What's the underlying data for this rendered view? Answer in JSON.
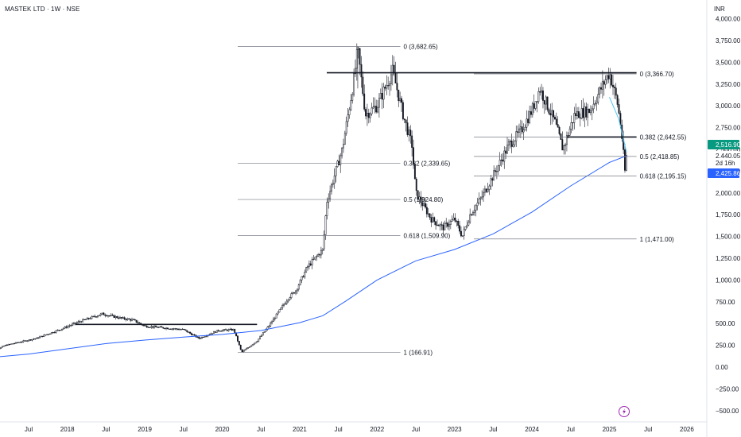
{
  "header": {
    "title": "MASTEK LTD · 1W · NSE",
    "currency": "INR"
  },
  "chart_data": {
    "type": "candlestick",
    "y_axis": {
      "min": -500,
      "max": 4000,
      "ticks": [
        "4,000.00",
        "3,750.00",
        "3,500.00",
        "3,250.00",
        "3,000.00",
        "2,750.00",
        "2,500.00",
        "2,250.00",
        "2,000.00",
        "1,750.00",
        "1,500.00",
        "1,250.00",
        "1,000.00",
        "750.00",
        "500.00",
        "250.00",
        "0.00",
        "−250.00",
        "−500.00"
      ],
      "tick_values": [
        4000,
        3750,
        3500,
        3250,
        3000,
        2750,
        2500,
        2250,
        2000,
        1750,
        1500,
        1250,
        1000,
        750,
        500,
        250,
        0,
        -250,
        -500
      ]
    },
    "x_axis": {
      "ticks": [
        {
          "label": "Jul",
          "t": 2017.5
        },
        {
          "label": "2018",
          "t": 2018.0
        },
        {
          "label": "Jul",
          "t": 2018.5
        },
        {
          "label": "2019",
          "t": 2019.0
        },
        {
          "label": "Jul",
          "t": 2019.5
        },
        {
          "label": "2020",
          "t": 2020.0
        },
        {
          "label": "Jul",
          "t": 2020.5
        },
        {
          "label": "2021",
          "t": 2021.0
        },
        {
          "label": "Jul",
          "t": 2021.5
        },
        {
          "label": "2022",
          "t": 2022.0
        },
        {
          "label": "Jul",
          "t": 2022.5
        },
        {
          "label": "2023",
          "t": 2023.0
        },
        {
          "label": "Jul",
          "t": 2023.5
        },
        {
          "label": "2024",
          "t": 2024.0
        },
        {
          "label": "Jul",
          "t": 2024.5
        },
        {
          "label": "2025",
          "t": 2025.0
        },
        {
          "label": "Jul",
          "t": 2025.5
        },
        {
          "label": "2026",
          "t": 2026.0
        }
      ]
    },
    "price_path": [
      [
        2016.95,
        140
      ],
      [
        2017.2,
        250
      ],
      [
        2017.6,
        330
      ],
      [
        2017.9,
        430
      ],
      [
        2018.15,
        520
      ],
      [
        2018.45,
        610
      ],
      [
        2018.7,
        560
      ],
      [
        2018.85,
        540
      ],
      [
        2019.0,
        470
      ],
      [
        2019.5,
        430
      ],
      [
        2019.7,
        330
      ],
      [
        2019.95,
        420
      ],
      [
        2020.15,
        430
      ],
      [
        2020.25,
        170
      ],
      [
        2020.45,
        300
      ],
      [
        2020.6,
        470
      ],
      [
        2020.85,
        790
      ],
      [
        2020.95,
        880
      ],
      [
        2021.1,
        1150
      ],
      [
        2021.3,
        1350
      ],
      [
        2021.35,
        1900
      ],
      [
        2021.55,
        2500
      ],
      [
        2021.7,
        3300
      ],
      [
        2021.75,
        3650
      ],
      [
        2021.85,
        2900
      ],
      [
        2022.0,
        3000
      ],
      [
        2022.2,
        3400
      ],
      [
        2022.35,
        2850
      ],
      [
        2022.45,
        2550
      ],
      [
        2022.5,
        2000
      ],
      [
        2022.7,
        1700
      ],
      [
        2022.85,
        1600
      ],
      [
        2023.0,
        1700
      ],
      [
        2023.1,
        1500
      ],
      [
        2023.2,
        1750
      ],
      [
        2023.35,
        1950
      ],
      [
        2023.5,
        2200
      ],
      [
        2023.7,
        2550
      ],
      [
        2023.85,
        2700
      ],
      [
        2024.0,
        2950
      ],
      [
        2024.1,
        3200
      ],
      [
        2024.3,
        2800
      ],
      [
        2024.4,
        2500
      ],
      [
        2024.55,
        2900
      ],
      [
        2024.75,
        2950
      ],
      [
        2024.95,
        3300
      ],
      [
        2025.0,
        3380
      ],
      [
        2025.1,
        3050
      ],
      [
        2025.15,
        2750
      ],
      [
        2025.2,
        2250
      ],
      [
        2025.22,
        2430
      ]
    ],
    "moving_average": {
      "color": "#2962ff",
      "points": [
        [
          2016.95,
          105
        ],
        [
          2017.5,
          150
        ],
        [
          2018.0,
          210
        ],
        [
          2018.5,
          270
        ],
        [
          2019.0,
          310
        ],
        [
          2019.5,
          345
        ],
        [
          2020.0,
          375
        ],
        [
          2020.5,
          420
        ],
        [
          2021.0,
          510
        ],
        [
          2021.3,
          590
        ],
        [
          2021.6,
          760
        ],
        [
          2022.0,
          1000
        ],
        [
          2022.5,
          1220
        ],
        [
          2023.0,
          1350
        ],
        [
          2023.5,
          1530
        ],
        [
          2024.0,
          1780
        ],
        [
          2024.5,
          2080
        ],
        [
          2025.0,
          2350
        ],
        [
          2025.22,
          2426
        ]
      ]
    },
    "short_ma": {
      "color": "#4fc3f7",
      "points": [
        [
          2025.0,
          3100
        ],
        [
          2025.12,
          2850
        ],
        [
          2025.22,
          2470
        ]
      ]
    },
    "fib_sets": [
      {
        "line_start": 2020.2,
        "line_end": 2022.3,
        "label_at": 2022.3,
        "levels": [
          {
            "text": "0 (3,682.65)",
            "value": 3682.65
          },
          {
            "text": "0.382 (2,339.65)",
            "value": 2339.65
          },
          {
            "text": "0.5 (1,924.80)",
            "value": 1924.8
          },
          {
            "text": "0.618 (1,509.90)",
            "value": 1509.9
          },
          {
            "text": "1 (166.91)",
            "value": 166.91
          }
        ]
      },
      {
        "line_start": 2023.25,
        "line_end": 2025.35,
        "label_at": 2025.35,
        "levels": [
          {
            "text": "0 (3,366.70)",
            "value": 3366.7
          },
          {
            "text": "0.382 (2,642.55)",
            "value": 2642.55
          },
          {
            "text": "0.5 (2,418.85)",
            "value": 2418.85
          },
          {
            "text": "0.618 (2,195.15)",
            "value": 2195.15
          },
          {
            "text": "1 (1,471.00)",
            "value": 1471.0
          }
        ]
      }
    ],
    "trend_lines": [
      {
        "t1": 2018.1,
        "t2": 2020.45,
        "value": 490
      },
      {
        "t1": 2021.35,
        "t2": 2025.35,
        "value": 3380
      },
      {
        "t1": 2024.45,
        "t2": 2025.35,
        "value": 2642
      }
    ],
    "price_badges": [
      {
        "text": "2,516.90",
        "value": 2516.9,
        "bg": "#089981",
        "fg": "#ffffff"
      },
      {
        "text": "2,440.05",
        "value": 2440.05,
        "bg": "#ffffff",
        "fg": "#131722"
      },
      {
        "text": "2d 16h",
        "value": 2340,
        "bg": "#ffffff",
        "fg": "#131722"
      },
      {
        "text": "2,425.86",
        "value": 2425.86,
        "bg": "#2962ff",
        "fg": "#ffffff"
      }
    ],
    "colors": {
      "up": "#131722",
      "down": "#131722",
      "grid": "#e0e3eb"
    }
  }
}
